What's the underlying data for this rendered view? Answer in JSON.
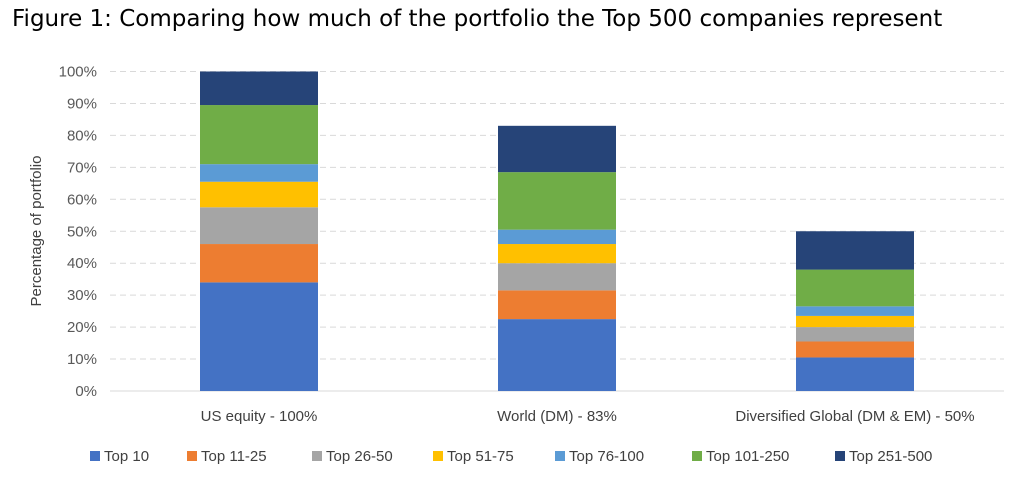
{
  "title": "Figure 1: Comparing how much of the portfolio the Top 500 companies represent",
  "chart_data": {
    "type": "bar",
    "stacked": true,
    "ylabel": "Percentage of portfolio",
    "xlabel": "",
    "ylim": [
      0,
      100
    ],
    "yticks": [
      "0%",
      "10%",
      "20%",
      "30%",
      "40%",
      "50%",
      "60%",
      "70%",
      "80%",
      "90%",
      "100%"
    ],
    "grid": "horizontal dashed",
    "legend_position": "bottom",
    "categories": [
      "US equity - 100%",
      "World (DM) - 83%",
      "Diversified Global (DM & EM) - 50%"
    ],
    "series": [
      {
        "name": "Top 10",
        "color": "#4472C4",
        "values": [
          34,
          22.5,
          10.5
        ]
      },
      {
        "name": "Top 11-25",
        "color": "#ED7D31",
        "values": [
          12,
          9,
          5
        ]
      },
      {
        "name": "Top 26-50",
        "color": "#A5A5A5",
        "values": [
          11.5,
          8.5,
          4.5
        ]
      },
      {
        "name": "Top 51-75",
        "color": "#FFC000",
        "values": [
          8,
          6,
          3.5
        ]
      },
      {
        "name": "Top 76-100",
        "color": "#5B9BD5",
        "values": [
          5.5,
          4.5,
          3
        ]
      },
      {
        "name": "Top 101-250",
        "color": "#70AD47",
        "values": [
          18.5,
          18,
          11.5
        ]
      },
      {
        "name": "Top 251-500",
        "color": "#264478",
        "values": [
          10.5,
          14.5,
          12
        ]
      }
    ]
  }
}
